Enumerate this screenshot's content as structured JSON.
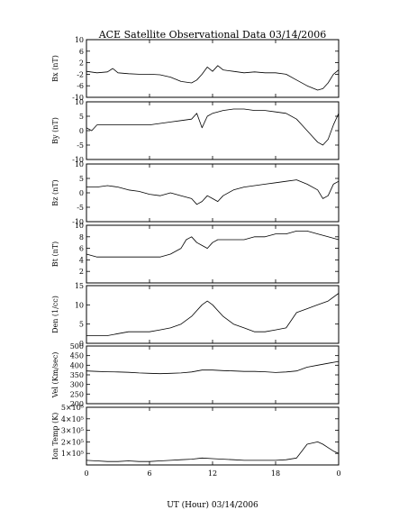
{
  "chart_data": {
    "type": "line",
    "title": "ACE Satellite Observational Data   03/14/2006",
    "xlabel": "UT (Hour)   03/14/2006",
    "x_tick_labels": [
      "0",
      "6",
      "12",
      "18",
      "0"
    ],
    "x_range": [
      0,
      24
    ],
    "panels": [
      {
        "id": "bx",
        "ylabel": "Bx (nT)",
        "ylim": [
          -10,
          10
        ],
        "tick_labels": [
          {
            "v": 10,
            "t": "10"
          },
          {
            "v": 6,
            "t": "6"
          },
          {
            "v": 2,
            "t": "2"
          },
          {
            "v": -2,
            "t": "-2"
          },
          {
            "v": -6,
            "t": "-6"
          },
          {
            "v": -10,
            "t": "-10"
          }
        ],
        "x": [
          0,
          1,
          2,
          2.5,
          3,
          4,
          5,
          6,
          7,
          8,
          9,
          10,
          10.5,
          11,
          11.5,
          12,
          12.5,
          13,
          14,
          15,
          16,
          17,
          18,
          19,
          20,
          21,
          22,
          22.5,
          23,
          23.5,
          24
        ],
        "y": [
          -1,
          -1.5,
          -1.2,
          0,
          -1.5,
          -1.8,
          -2,
          -2,
          -2.2,
          -3,
          -4.5,
          -5,
          -4,
          -2,
          0.5,
          -1,
          1,
          -0.5,
          -1,
          -1.5,
          -1.2,
          -1.5,
          -1.5,
          -2,
          -4,
          -6,
          -7.5,
          -7,
          -5,
          -2,
          -0.5
        ]
      },
      {
        "id": "by",
        "ylabel": "By (nT)",
        "ylim": [
          -10,
          10
        ],
        "tick_labels": [
          {
            "v": 10,
            "t": "10"
          },
          {
            "v": 5,
            "t": "5"
          },
          {
            "v": 0,
            "t": "0"
          },
          {
            "v": -5,
            "t": "-5"
          },
          {
            "v": -10,
            "t": "-10"
          }
        ],
        "x": [
          0,
          0.5,
          1,
          2,
          3,
          4,
          5,
          6,
          7,
          8,
          9,
          10,
          10.5,
          11,
          11.5,
          12,
          12.5,
          13,
          14,
          15,
          16,
          17,
          18,
          19,
          20,
          20.5,
          21,
          21.5,
          22,
          22.5,
          23,
          23.5,
          24
        ],
        "y": [
          1,
          0,
          2,
          2,
          2,
          2,
          2,
          2,
          2.5,
          3,
          3.5,
          4,
          6,
          1,
          5,
          6,
          6.5,
          7,
          7.5,
          7.5,
          7,
          7,
          6.5,
          6,
          4,
          2,
          0,
          -2,
          -4,
          -5,
          -3,
          2,
          6
        ]
      },
      {
        "id": "bz",
        "ylabel": "Bz (nT)",
        "ylim": [
          -10,
          10
        ],
        "tick_labels": [
          {
            "v": 10,
            "t": "10"
          },
          {
            "v": 5,
            "t": "5"
          },
          {
            "v": 0,
            "t": "0"
          },
          {
            "v": -5,
            "t": "-5"
          },
          {
            "v": -10,
            "t": "-10"
          }
        ],
        "x": [
          0,
          1,
          2,
          3,
          4,
          5,
          6,
          7,
          8,
          9,
          10,
          10.5,
          11,
          11.5,
          12,
          12.5,
          13,
          14,
          15,
          16,
          17,
          18,
          19,
          20,
          21,
          22,
          22.5,
          23,
          23.5,
          24
        ],
        "y": [
          2,
          2,
          2.5,
          2,
          1,
          0.5,
          -0.5,
          -1,
          0,
          -1,
          -2,
          -4,
          -3,
          -1,
          -2,
          -3,
          -1,
          1,
          2,
          2.5,
          3,
          3.5,
          4,
          4.5,
          3,
          1,
          -2,
          -1,
          3,
          4
        ]
      },
      {
        "id": "bt",
        "ylabel": "Bt (nT)",
        "ylim": [
          0,
          10
        ],
        "tick_labels": [
          {
            "v": 10,
            "t": "10"
          },
          {
            "v": 8,
            "t": "8"
          },
          {
            "v": 6,
            "t": "6"
          },
          {
            "v": 4,
            "t": "4"
          },
          {
            "v": 2,
            "t": "2"
          }
        ],
        "x": [
          0,
          1,
          2,
          3,
          4,
          5,
          6,
          7,
          8,
          9,
          9.5,
          10,
          10.5,
          11,
          11.5,
          12,
          12.5,
          13,
          14,
          15,
          16,
          17,
          18,
          19,
          20,
          21,
          22,
          23,
          24
        ],
        "y": [
          5,
          4.5,
          4.5,
          4.5,
          4.5,
          4.5,
          4.5,
          4.5,
          5,
          6,
          7.5,
          8,
          7,
          6.5,
          6,
          7,
          7.5,
          7.5,
          7.5,
          7.5,
          8,
          8,
          8.5,
          8.5,
          9,
          9,
          8.5,
          8,
          7.5
        ]
      },
      {
        "id": "den",
        "ylabel": "Den (1/cc)",
        "ylim": [
          0,
          15
        ],
        "tick_labels": [
          {
            "v": 15,
            "t": "15"
          },
          {
            "v": 10,
            "t": "10"
          },
          {
            "v": 5,
            "t": "5"
          },
          {
            "v": 0,
            "t": "0"
          }
        ],
        "x": [
          0,
          1,
          2,
          3,
          4,
          5,
          6,
          7,
          8,
          9,
          10,
          11,
          11.5,
          12,
          13,
          14,
          15,
          16,
          17,
          18,
          19,
          20,
          21,
          22,
          23,
          24
        ],
        "y": [
          2,
          2,
          2,
          2.5,
          3,
          3,
          3,
          3.5,
          4,
          5,
          7,
          10,
          11,
          10,
          7,
          5,
          4,
          3,
          3,
          3.5,
          4,
          8,
          9,
          10,
          11,
          13
        ]
      },
      {
        "id": "vel",
        "ylabel": "Vel (Km/sec)",
        "ylim": [
          200,
          500
        ],
        "tick_labels": [
          {
            "v": 500,
            "t": "500"
          },
          {
            "v": 450,
            "t": "450"
          },
          {
            "v": 400,
            "t": "400"
          },
          {
            "v": 350,
            "t": "350"
          },
          {
            "v": 300,
            "t": "300"
          },
          {
            "v": 250,
            "t": "250"
          },
          {
            "v": 200,
            "t": "200"
          }
        ],
        "x": [
          0,
          1,
          2,
          3,
          4,
          5,
          6,
          7,
          8,
          9,
          10,
          11,
          12,
          13,
          14,
          15,
          16,
          17,
          18,
          19,
          20,
          21,
          22,
          23,
          24
        ],
        "y": [
          370,
          368,
          366,
          365,
          363,
          360,
          358,
          356,
          358,
          360,
          365,
          375,
          375,
          372,
          370,
          368,
          368,
          366,
          362,
          365,
          370,
          390,
          400,
          410,
          420
        ]
      },
      {
        "id": "temp",
        "ylabel": "Ion Temp (K)",
        "ylim": [
          0,
          500000
        ],
        "tick_labels": [
          {
            "v": 500000,
            "t": "5×10⁵"
          },
          {
            "v": 400000,
            "t": "4×10⁵"
          },
          {
            "v": 300000,
            "t": "3×10⁵"
          },
          {
            "v": 200000,
            "t": "2×10⁵"
          },
          {
            "v": 100000,
            "t": "1×10⁵"
          }
        ],
        "x": [
          0,
          1,
          2,
          3,
          4,
          5,
          6,
          7,
          8,
          9,
          10,
          11,
          12,
          13,
          14,
          15,
          16,
          17,
          18,
          19,
          20,
          20.5,
          21,
          22,
          22.5,
          23,
          23.5,
          24
        ],
        "y": [
          40000,
          35000,
          30000,
          30000,
          35000,
          30000,
          30000,
          35000,
          40000,
          45000,
          50000,
          60000,
          55000,
          50000,
          45000,
          40000,
          40000,
          40000,
          40000,
          45000,
          60000,
          120000,
          180000,
          200000,
          180000,
          150000,
          120000,
          100000
        ]
      }
    ]
  }
}
